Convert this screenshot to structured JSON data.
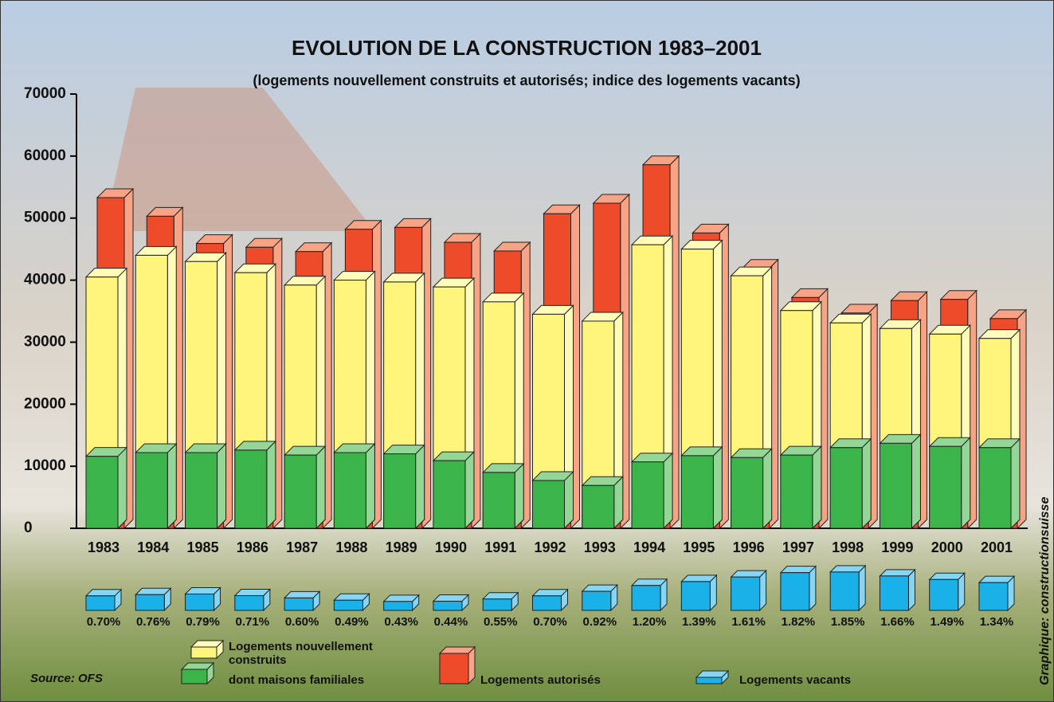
{
  "chart_data": {
    "type": "bar3d",
    "title": "EVOLUTION DE LA CONSTRUCTION 1983–2001",
    "subtitle": "(logements nouvellement construits et autorisés; indice des logements vacants)",
    "source": "Source: OFS",
    "credit": "Graphique: constructionsuisse",
    "categories": [
      "1983",
      "1984",
      "1985",
      "1986",
      "1987",
      "1988",
      "1989",
      "1990",
      "1991",
      "1992",
      "1993",
      "1994",
      "1995",
      "1996",
      "1997",
      "1998",
      "1999",
      "2000",
      "2001"
    ],
    "ylim": [
      0,
      70000
    ],
    "yticks": [
      0,
      10000,
      20000,
      30000,
      40000,
      50000,
      60000,
      70000
    ],
    "series": [
      {
        "name": "Logements nouvellement construits",
        "color": "#fff57a",
        "values": [
          40500,
          44000,
          43000,
          41200,
          39200,
          40000,
          39700,
          38900,
          36500,
          34500,
          33400,
          45700,
          45000,
          40700,
          35100,
          33100,
          32200,
          31300,
          30600
        ]
      },
      {
        "name": "dont maisons familiales",
        "color": "#3bb54a",
        "values": [
          11600,
          12200,
          12200,
          12600,
          11800,
          12200,
          12000,
          10900,
          9000,
          7700,
          6900,
          10700,
          11700,
          11400,
          11800,
          13000,
          13700,
          13200,
          13000
        ]
      },
      {
        "name": "Logements autorisés",
        "color": "#ee4b2b",
        "values": [
          53300,
          50300,
          45900,
          45300,
          44600,
          48200,
          48500,
          46100,
          44700,
          50700,
          52400,
          58600,
          47600,
          41900,
          37200,
          34700,
          36700,
          36900,
          33800
        ]
      },
      {
        "name": "Logements vacants",
        "color": "#1ab0e8",
        "values": [
          0.7,
          0.76,
          0.79,
          0.71,
          0.6,
          0.49,
          0.43,
          0.44,
          0.55,
          0.7,
          0.92,
          1.2,
          1.39,
          1.61,
          1.82,
          1.85,
          1.66,
          1.49,
          1.34
        ],
        "value_labels": [
          "0.70%",
          "0.76%",
          "0.79%",
          "0.71%",
          "0.60%",
          "0.49%",
          "0.43%",
          "0.44%",
          "0.55%",
          "0.70%",
          "0.92%",
          "1.20%",
          "1.39%",
          "1.61%",
          "1.82%",
          "1.85%",
          "1.66%",
          "1.49%",
          "1.34%"
        ]
      }
    ]
  }
}
